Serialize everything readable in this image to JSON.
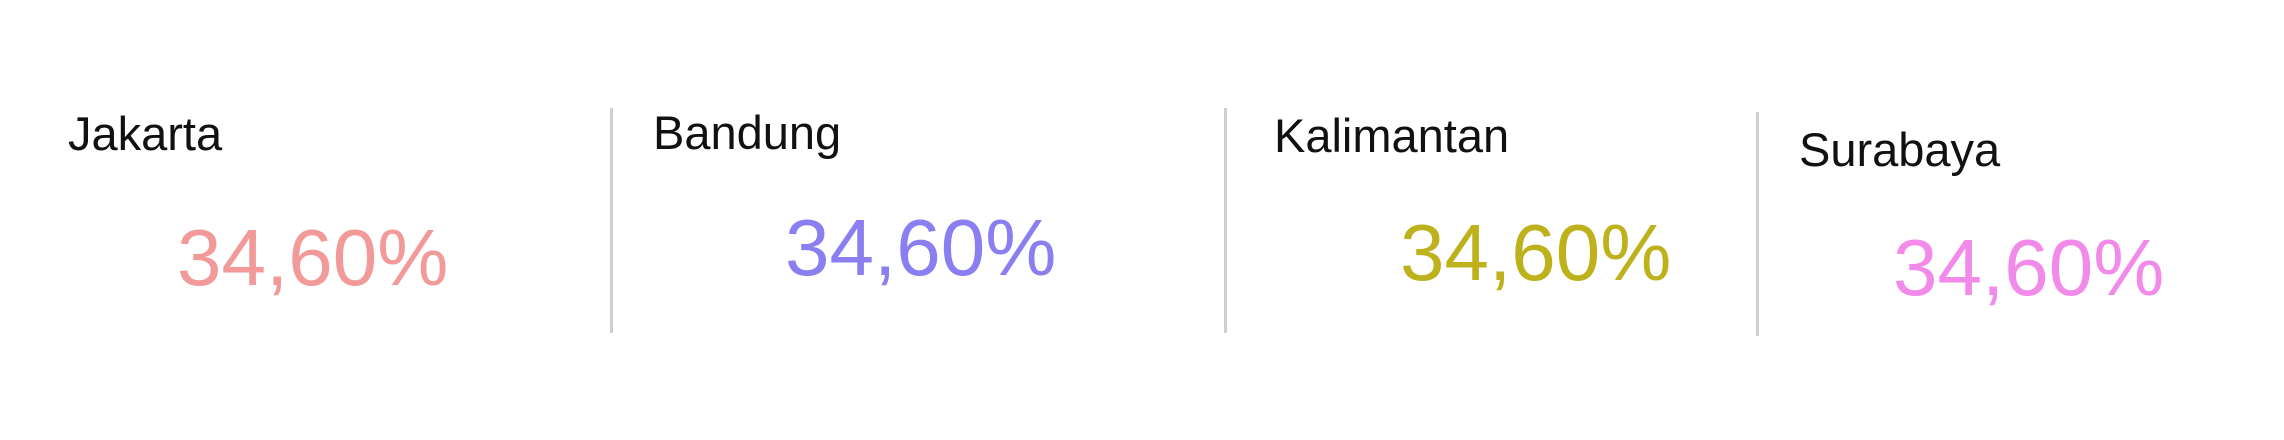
{
  "stats": [
    {
      "city": "Jakarta",
      "value": "34,60%",
      "color": "#F29A9A"
    },
    {
      "city": "Bandung",
      "value": "34,60%",
      "color": "#8A7EF0"
    },
    {
      "city": "Kalimantan",
      "value": "34,60%",
      "color": "#BDB21C"
    },
    {
      "city": "Surabaya",
      "value": "34,60%",
      "color": "#F28AEA"
    }
  ]
}
